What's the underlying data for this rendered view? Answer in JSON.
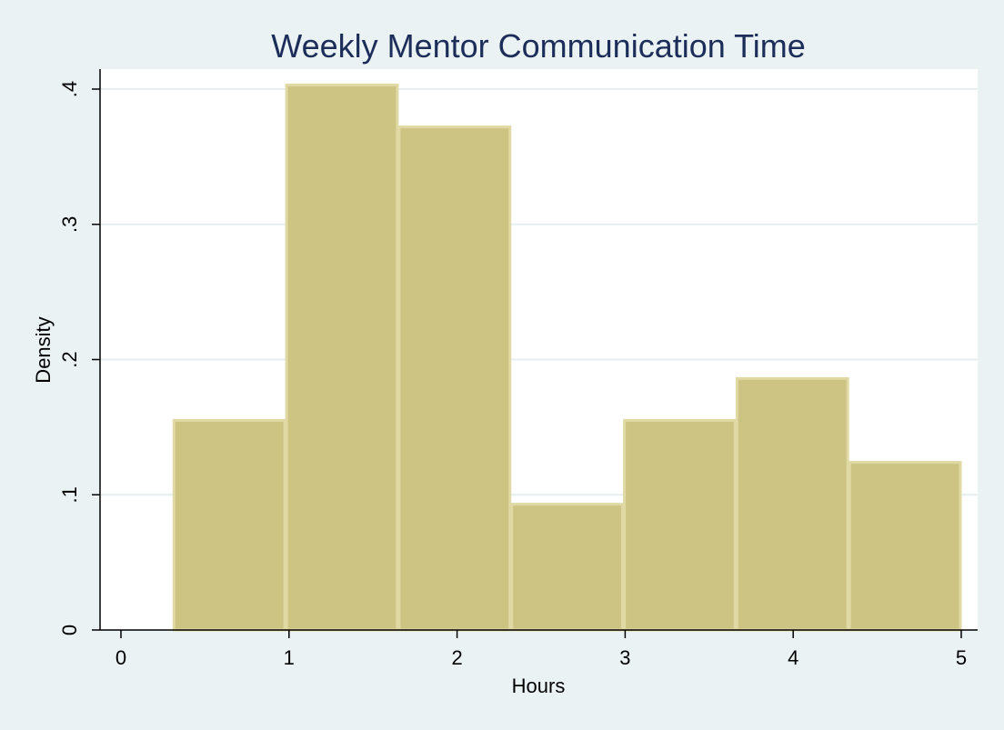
{
  "chart_data": {
    "type": "bar",
    "subtype": "histogram",
    "title": "Weekly Mentor Communication Time",
    "xlabel": "Hours",
    "ylabel": "Density",
    "bins": [
      {
        "start": 0.31,
        "end": 0.98,
        "value": 0.155
      },
      {
        "start": 0.98,
        "end": 1.65,
        "value": 0.403
      },
      {
        "start": 1.65,
        "end": 2.32,
        "value": 0.372
      },
      {
        "start": 2.32,
        "end": 2.99,
        "value": 0.093
      },
      {
        "start": 2.99,
        "end": 3.66,
        "value": 0.155
      },
      {
        "start": 3.66,
        "end": 4.33,
        "value": 0.186
      },
      {
        "start": 4.33,
        "end": 5.0,
        "value": 0.124
      }
    ],
    "xlim": [
      0,
      5
    ],
    "ylim": [
      0,
      0.4
    ],
    "x_ticks": [
      0,
      1,
      2,
      3,
      4,
      5
    ],
    "x_tick_labels": [
      "0",
      "1",
      "2",
      "3",
      "4",
      "5"
    ],
    "y_ticks": [
      0,
      0.1,
      0.2,
      0.3,
      0.4
    ],
    "y_tick_labels": [
      "0",
      ".1",
      ".2",
      ".3",
      ".4"
    ],
    "grid": true,
    "colors": {
      "background": "#eaf2f3",
      "plot_background": "#ffffff",
      "bar_fill": "#cdc484",
      "bar_edge": "#e0d9a4",
      "grid": "#e6eef0",
      "title": "#1c2d5a",
      "axis": "#000000"
    }
  }
}
